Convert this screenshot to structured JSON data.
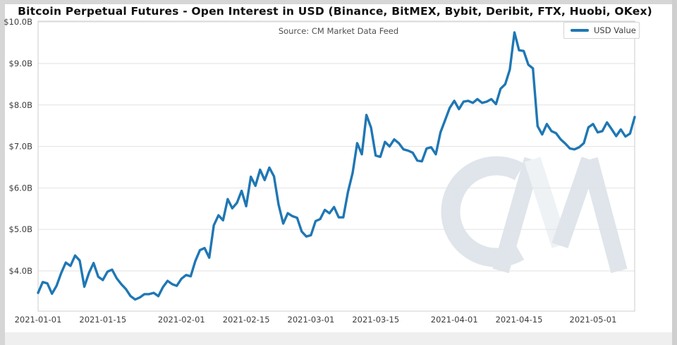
{
  "header": {
    "title": "Bitcoin Perpetual Futures - Open Interest in USD (Binance, BitMEX, Bybit, Deribit, FTX, Huobi, OKex)"
  },
  "plot": {
    "source_label": "Source: CM Market Data Feed",
    "legend_label": "USD Value",
    "watermark_name": "CM"
  },
  "chart_data": {
    "type": "line",
    "title": "Bitcoin Perpetual Futures - Open Interest in USD (Binance, BitMEX, Bybit, Deribit, FTX, Huobi, OKex)",
    "subtitle": "Source: CM Market Data Feed",
    "xlabel": "",
    "ylabel": "",
    "grid": "horizontal",
    "legend_position": "top-right",
    "ylim": [
      3.03,
      10.02
    ],
    "yticks": [
      {
        "label": "$4.0B",
        "value": 4
      },
      {
        "label": "$5.0B",
        "value": 5
      },
      {
        "label": "$6.0B",
        "value": 6
      },
      {
        "label": "$7.0B",
        "value": 7
      },
      {
        "label": "$8.0B",
        "value": 8
      },
      {
        "label": "$9.0B",
        "value": 9
      },
      {
        "label": "$10.0B",
        "value": 10
      }
    ],
    "xticks": [
      {
        "label": "2021-01-01",
        "day": 0
      },
      {
        "label": "2021-01-15",
        "day": 14
      },
      {
        "label": "2021-02-01",
        "day": 31
      },
      {
        "label": "2021-02-15",
        "day": 45
      },
      {
        "label": "2021-03-01",
        "day": 59
      },
      {
        "label": "2021-03-15",
        "day": 73
      },
      {
        "label": "2021-04-01",
        "day": 90
      },
      {
        "label": "2021-04-15",
        "day": 104
      },
      {
        "label": "2021-05-01",
        "day": 120
      }
    ],
    "series": [
      {
        "name": "USD Value",
        "color": "#1f77b4",
        "unit": "USD billions",
        "x_start_date": "2021-01-01",
        "x_end_date": "2021-05-10",
        "x_frequency": "daily",
        "values": [
          3.47,
          3.73,
          3.7,
          3.45,
          3.64,
          3.95,
          4.2,
          4.12,
          4.37,
          4.25,
          3.62,
          3.95,
          4.19,
          3.86,
          3.78,
          3.98,
          4.03,
          3.82,
          3.68,
          3.56,
          3.39,
          3.31,
          3.36,
          3.44,
          3.44,
          3.47,
          3.39,
          3.61,
          3.76,
          3.68,
          3.64,
          3.81,
          3.9,
          3.87,
          4.24,
          4.5,
          4.55,
          4.32,
          5.1,
          5.34,
          5.22,
          5.73,
          5.51,
          5.64,
          5.93,
          5.56,
          6.27,
          6.05,
          6.44,
          6.19,
          6.49,
          6.28,
          5.6,
          5.14,
          5.39,
          5.32,
          5.28,
          4.95,
          4.83,
          4.86,
          5.2,
          5.25,
          5.47,
          5.39,
          5.54,
          5.29,
          5.29,
          5.9,
          6.36,
          7.08,
          6.81,
          7.76,
          7.45,
          6.78,
          6.75,
          7.11,
          7.0,
          7.17,
          7.08,
          6.93,
          6.9,
          6.85,
          6.66,
          6.64,
          6.95,
          6.98,
          6.81,
          7.34,
          7.63,
          7.93,
          8.1,
          7.9,
          8.08,
          8.1,
          8.05,
          8.14,
          8.05,
          8.08,
          8.14,
          8.02,
          8.39,
          8.5,
          8.85,
          9.75,
          9.32,
          9.3,
          8.97,
          8.88,
          7.49,
          7.29,
          7.54,
          7.37,
          7.32,
          7.17,
          7.07,
          6.95,
          6.93,
          6.98,
          7.08,
          7.46,
          7.54,
          7.34,
          7.37,
          7.58,
          7.42,
          7.25,
          7.41,
          7.24,
          7.31,
          7.71
        ]
      }
    ]
  }
}
